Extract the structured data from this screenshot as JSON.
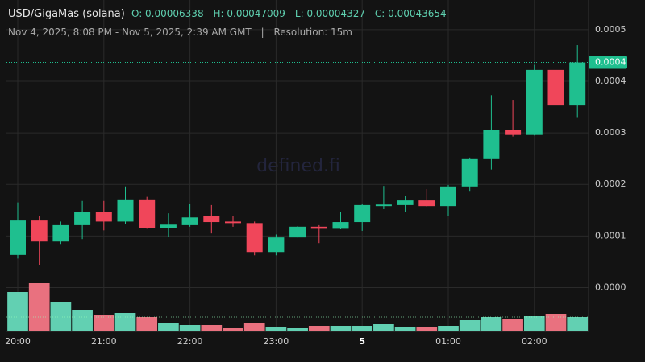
{
  "chart_data": {
    "type": "candlestick",
    "title": "USD/GigaMas (solana)",
    "summary": "O: 0.00006338 - H: 0.00047009 - L: 0.00004327 - C: 0.00043654",
    "subtitle": "Nov 4, 2025, 8:08 PM - Nov 5, 2025, 2:39 AM GMT",
    "separator": "|",
    "resolution": "Resolution: 15m",
    "watermark": "defined.fi",
    "categories": [
      "20:00",
      null,
      null,
      null,
      "21:00",
      null,
      null,
      null,
      "22:00",
      null,
      null,
      null,
      "23:00",
      null,
      null,
      null,
      "5",
      null,
      null,
      null,
      "01:00",
      null,
      null,
      null,
      "02:00",
      null,
      null
    ],
    "open": [
      6.338e-05,
      0.00013,
      8.93e-05,
      0.000121,
      0.000147,
      0.000128,
      0.000171,
      0.000116,
      0.000121,
      0.000138,
      0.000128,
      0.000125,
      6.9e-05,
      9.72e-05,
      0.000118,
      0.000114,
      0.000127,
      0.000158,
      0.00016,
      0.000169,
      0.000158,
      0.000196,
      0.000249,
      0.000306,
      0.000296,
      0.000422,
      0.000353
    ],
    "high": [
      0.000165,
      0.000138,
      0.000128,
      0.000168,
      0.000168,
      0.000196,
      0.000176,
      0.000144,
      0.000163,
      0.00016,
      0.000138,
      0.000128,
      0.000103,
      0.000119,
      0.000121,
      0.000146,
      0.000163,
      0.000197,
      0.000177,
      0.000191,
      0.000199,
      0.000252,
      0.000373,
      0.000364,
      0.000432,
      0.000429,
      0.00047009
    ],
    "low": [
      5.64e-05,
      4.327e-05,
      8.46e-05,
      9.4e-05,
      0.000111,
      0.000124,
      0.000114,
      9.87e-05,
      0.000118,
      0.000105,
      0.000118,
      6.27e-05,
      6.27e-05,
      9.72e-05,
      8.62e-05,
      0.000113,
      0.00011,
      0.000152,
      0.000146,
      0.000157,
      0.000139,
      0.000186,
      0.000229,
      0.000293,
      0.000295,
      0.000317,
      0.000329
    ],
    "close": [
      0.00013,
      8.93e-05,
      0.000121,
      0.000147,
      0.000128,
      0.000171,
      0.000116,
      0.000122,
      0.000136,
      0.000127,
      0.000125,
      6.9e-05,
      9.72e-05,
      0.000118,
      0.000114,
      0.000127,
      0.00016,
      0.000161,
      0.000169,
      0.000158,
      0.000196,
      0.000249,
      0.000306,
      0.000296,
      0.000422,
      0.000353,
      0.00043654
    ],
    "volume": [
      49,
      60,
      36,
      27,
      21,
      23,
      18,
      11,
      8,
      8,
      4,
      11,
      6,
      4,
      7,
      7,
      7,
      9,
      6,
      5,
      7,
      14,
      18,
      16,
      19,
      22,
      18
    ],
    "up_color": "#1fbf8f",
    "down_color": "#f0465a",
    "volume_up_color": "#62d0b2",
    "volume_down_color": "#e9717f",
    "ylim": [
      -8.5e-05,
      0.000545
    ],
    "yticks": [
      {
        "value": 0,
        "label": "0.0000"
      },
      0.0001,
      0.0002,
      0.0003,
      0.0004,
      0.0005
    ],
    "last_price": {
      "value": 0.00043654,
      "label": "0.0004"
    },
    "grid": true
  }
}
